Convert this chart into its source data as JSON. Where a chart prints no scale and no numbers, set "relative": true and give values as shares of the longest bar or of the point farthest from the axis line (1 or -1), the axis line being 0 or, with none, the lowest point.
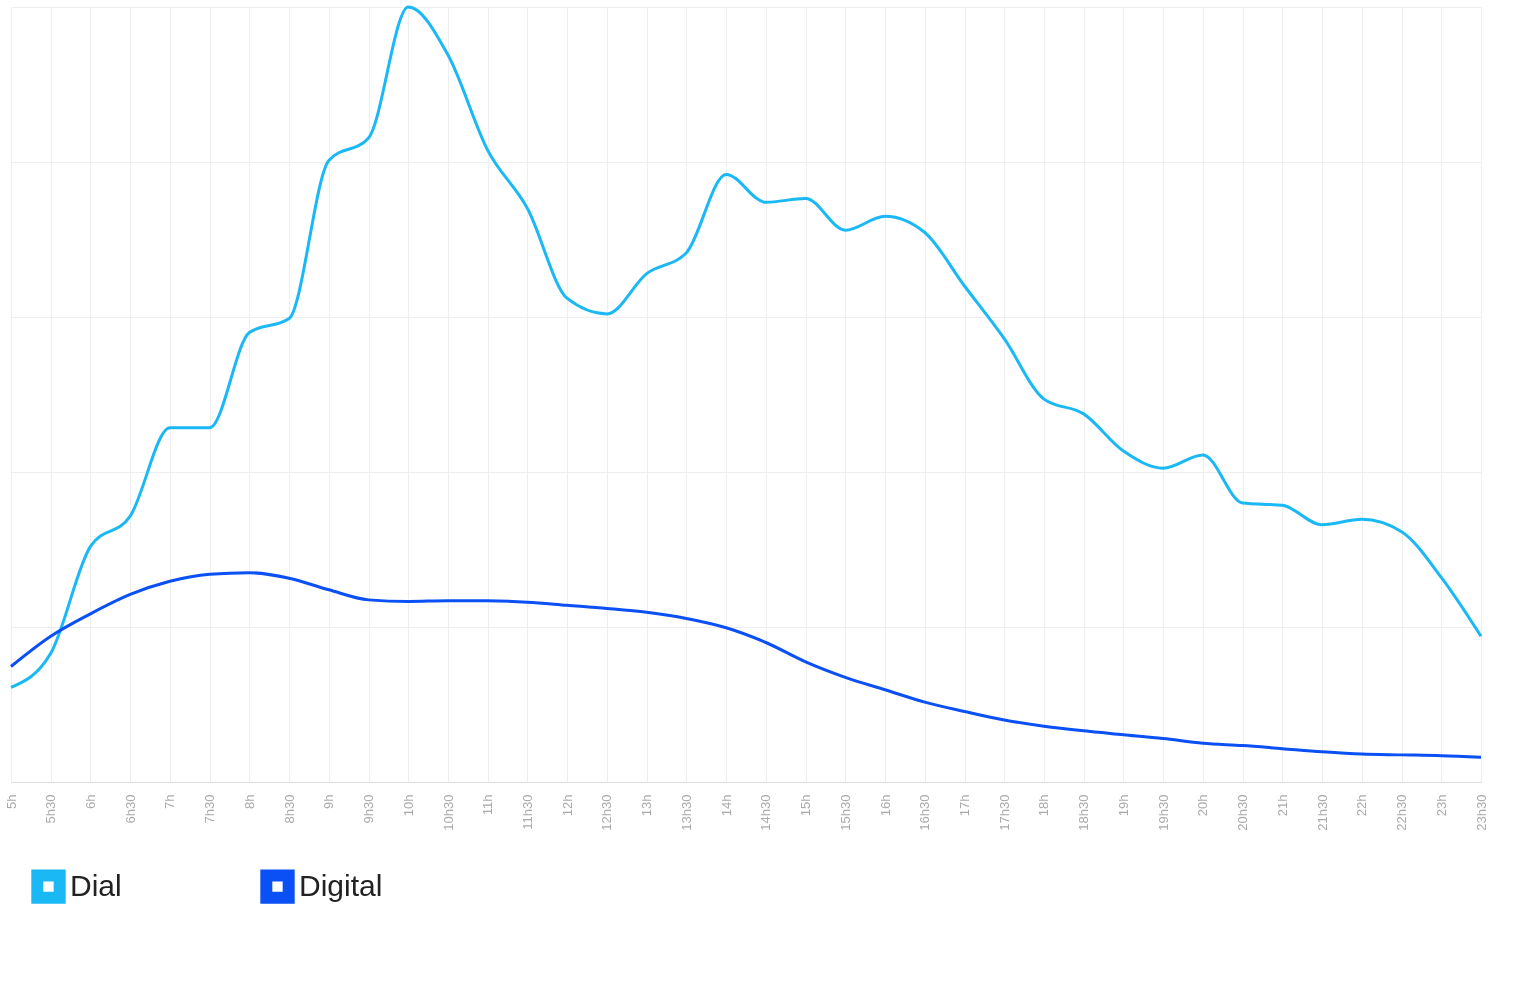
{
  "chart_data": {
    "type": "line",
    "relative": true,
    "grid": true,
    "legend": "bottom",
    "line_style": "solid",
    "marker": "none",
    "categories": [
      "5h",
      "5h30",
      "6h",
      "6h30",
      "7h",
      "7h30",
      "8h",
      "8h30",
      "9h",
      "9h30",
      "10h",
      "10h30",
      "11h",
      "11h30",
      "12h",
      "12h30",
      "13h",
      "13h30",
      "14h",
      "14h30",
      "15h",
      "15h30",
      "16h",
      "16h30",
      "17h",
      "17h30",
      "18h",
      "18h30",
      "19h",
      "19h30",
      "20h",
      "20h30",
      "21h",
      "21h30",
      "22h",
      "22h30",
      "23h",
      "23h30"
    ],
    "series": [
      {
        "name": "Dial",
        "color": "#1ab8f5",
        "values": [
          0.122,
          0.166,
          0.304,
          0.343,
          0.457,
          0.457,
          0.58,
          0.598,
          0.802,
          0.831,
          1.0,
          0.938,
          0.815,
          0.74,
          0.624,
          0.604,
          0.656,
          0.683,
          0.784,
          0.748,
          0.753,
          0.712,
          0.73,
          0.709,
          0.64,
          0.572,
          0.494,
          0.475,
          0.427,
          0.405,
          0.422,
          0.36,
          0.357,
          0.332,
          0.339,
          0.323,
          0.264,
          0.188
        ]
      },
      {
        "name": "Digital",
        "color": "#0a50f5",
        "values": [
          0.149,
          0.188,
          0.217,
          0.242,
          0.259,
          0.268,
          0.27,
          0.263,
          0.248,
          0.235,
          0.233,
          0.234,
          0.234,
          0.232,
          0.228,
          0.224,
          0.219,
          0.211,
          0.199,
          0.18,
          0.155,
          0.135,
          0.119,
          0.103,
          0.091,
          0.08,
          0.072,
          0.066,
          0.061,
          0.056,
          0.05,
          0.047,
          0.043,
          0.039,
          0.036,
          0.035,
          0.034,
          0.032
        ]
      }
    ]
  }
}
